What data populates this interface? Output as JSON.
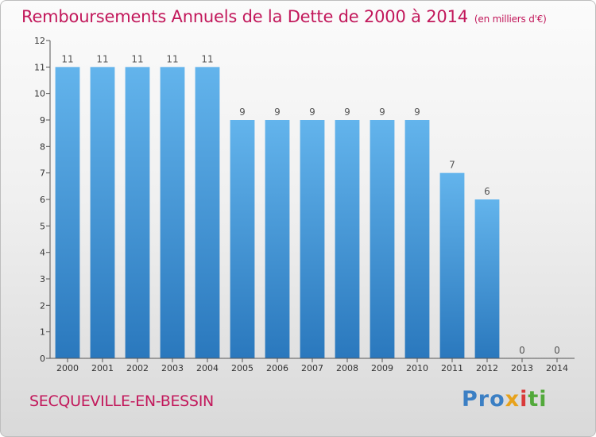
{
  "header": {
    "title": "Remboursements Annuels de la Dette de 2000 à 2014",
    "unit": "(en milliers d'€)"
  },
  "footer": {
    "city": "SECQUEVILLE-EN-BESSIN",
    "logo_icon": "proxiti-logo",
    "logo_parts": [
      "Pro",
      "x",
      "i",
      "ti"
    ]
  },
  "colors": {
    "bar_light": "#63b4ec",
    "bar_dark": "#2a78bd",
    "title": "#c2185b",
    "axis": "#555555"
  },
  "chart_data": {
    "type": "bar",
    "title": "Remboursements Annuels de la Dette de 2000 à 2014",
    "subtitle": "(en milliers d'€)",
    "categories": [
      "2000",
      "2001",
      "2002",
      "2003",
      "2004",
      "2005",
      "2006",
      "2007",
      "2008",
      "2009",
      "2010",
      "2011",
      "2012",
      "2013",
      "2014"
    ],
    "values": [
      11,
      11,
      11,
      11,
      11,
      9,
      9,
      9,
      9,
      9,
      9,
      7,
      6,
      0,
      0
    ],
    "data_labels": [
      "11",
      "11",
      "11",
      "11",
      "11",
      "9",
      "9",
      "9",
      "9",
      "9",
      "9",
      "7",
      "6",
      "0",
      "0"
    ],
    "ylim": [
      0,
      12
    ],
    "yticks": [
      0,
      1,
      2,
      3,
      4,
      5,
      6,
      7,
      8,
      9,
      10,
      11,
      12
    ],
    "grid": false,
    "legend": "none"
  }
}
